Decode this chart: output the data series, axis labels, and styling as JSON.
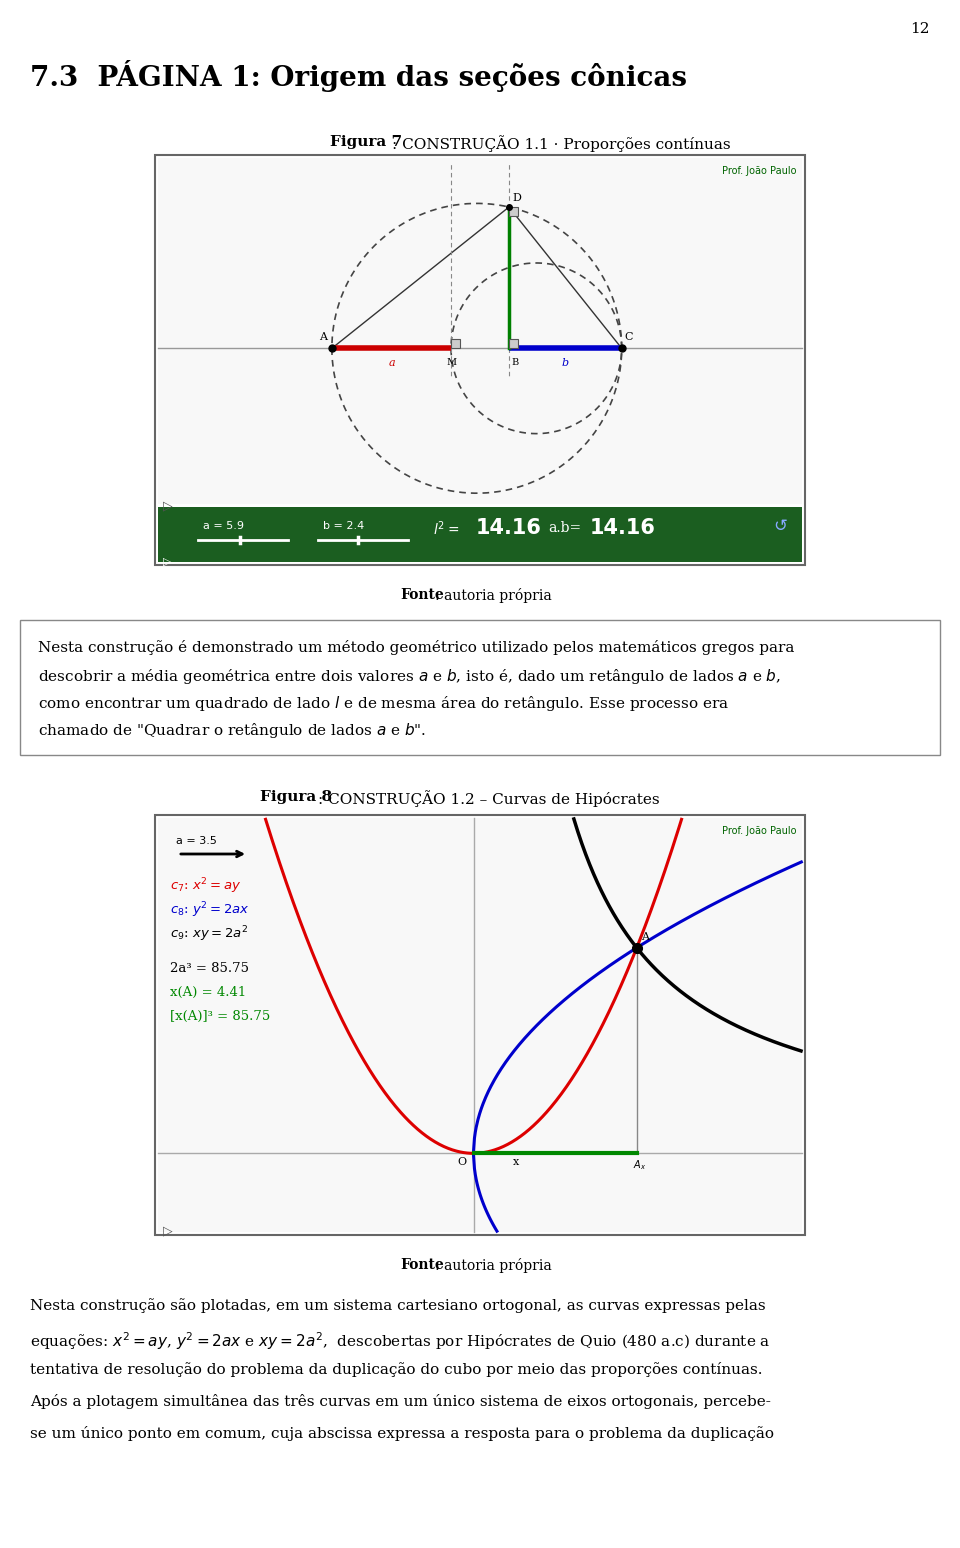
{
  "page_number": "12",
  "section_title": "7.3  PÁGINA 1: Origem das seções cônicas",
  "fig7_bold": "Figura 7",
  "fig7_rest": ": CONSTRUÇÃO 1.1 · Proporções contínuas",
  "fig8_bold": "Figura 8",
  "fig8_rest": ": CONSTRUÇÃO 1.2 – Curvas de Hipócrates",
  "fonte_bold": "Fonte",
  "fonte_rest": ": autoria própria",
  "para1_lines": [
    "Nesta construção é demonstrado um método geométrico utilizado pelos matemáticos gregos para",
    "descobrir a média geométrica entre dois valores $a$ e $b$, isto é, dado um retângulo de lados $a$ e $b$,",
    "como encontrar um quadrado de lado $l$ e de mesma área do retângulo. Esse processo era",
    "chamado de \"Quadrar o retângulo de lados $a$ e $b$\"."
  ],
  "para2_lines": [
    "Nesta construção são plotadas, em um sistema cartesiano ortogonal, as curvas expressas pelas",
    "equações: $x^2 = ay$, $y^2 = 2ax$ e $xy = 2a^2$,  descobertas por Hipócrates de Quio (480 a.c) durante a",
    "tentativa de resolução do problema da duplicação do cubo por meio das proporções contínuas.",
    "Após a plotagem simultânea das três curvas em um único sistema de eixos ortogonais, percebe-",
    "se um único ponto em comum, cuja abscissa expressa a resposta para o problema da duplicação"
  ],
  "toolbar_text": "a = 5.9     b = 2.4          l²=  14.16       a.b=   14.16",
  "fig8_a_label": "a = 3.5",
  "fig8_c7": "c₇: x² = ay",
  "fig8_c8": "c₈: y² = 2ax",
  "fig8_c9": "c₉: xy = 2a²",
  "fig8_val1": "2a³ = 85.75",
  "fig8_val2": "x(A) = 4.41",
  "fig8_val3": "[x(A)]³ = 85.75",
  "bg": "#ffffff",
  "toolbar_green": "#1b5e20",
  "geogebra_bg": "#f8f8f8",
  "border_color": "#666666",
  "axis_color": "#aaaaaa",
  "red_curve": "#dd0000",
  "blue_curve": "#0000cc",
  "green_seg": "#008800",
  "prof_color": "#006400"
}
